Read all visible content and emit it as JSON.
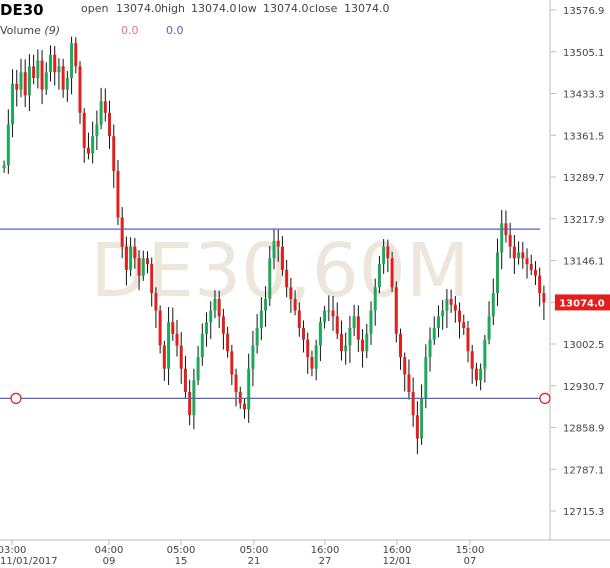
{
  "header": {
    "symbol": "DE30",
    "open_label": "open",
    "open_value": "13074.0",
    "high_label": "high",
    "high_value": "13074.0",
    "low_label": "low",
    "low_value": "13074.0",
    "close_label": "close",
    "close_value": "13074.0",
    "volume_label": "Volume",
    "volume_period": "(9)",
    "volume_value_1": "0.0",
    "volume_value_2": "0.0"
  },
  "colors": {
    "up": "#1ea85a",
    "down": "#e0201c",
    "wick": "#111111",
    "line": "#5566bb",
    "grid": "#bbbbbb",
    "price_label_bg": "#e0201c"
  },
  "chart_data": {
    "type": "line",
    "title": "",
    "watermark": "DE30,60M",
    "current_price": 13074.0,
    "ylim": [
      12680,
      13590
    ],
    "y_ticks": [
      "13576.9",
      "13505.1",
      "13433.3",
      "13361.5",
      "13289.7",
      "13217.9",
      "13146.1",
      "13074.0",
      "13002.5",
      "12930.7",
      "12858.9",
      "12787.1",
      "12715.3"
    ],
    "x_ticks": [
      {
        "time": "03:00",
        "date": "11/01/2017"
      },
      {
        "time": "04:00",
        "date": "09"
      },
      {
        "time": "05:00",
        "date": "15"
      },
      {
        "time": "05:00",
        "date": "21"
      },
      {
        "time": "16:00",
        "date": "27"
      },
      {
        "time": "16:00",
        "date": "12/01"
      },
      {
        "time": "15:00",
        "date": "07"
      }
    ],
    "horizontal_lines": [
      13200,
      12909
    ],
    "series": [
      {
        "values": [
          13310,
          13380,
          13450,
          13440,
          13470,
          13430,
          13480,
          13460,
          13490,
          13440,
          13470,
          13500,
          13470,
          13480,
          13440,
          13460,
          13520,
          13480,
          13400,
          13340,
          13330,
          13360,
          13380,
          13420,
          13400,
          13360,
          13300,
          13220,
          13170,
          13130,
          13170,
          13150,
          13120,
          13150,
          13140,
          13090,
          13060,
          13000,
          12960,
          13040,
          13020,
          13000,
          12960,
          12920,
          12880,
          12940,
          12980,
          13020,
          13040,
          13060,
          13080,
          13050,
          13020,
          12990,
          12950,
          12920,
          12900,
          12890,
          12960,
          13000,
          13030,
          13060,
          13080,
          13150,
          13180,
          13170,
          13130,
          13100,
          13080,
          13060,
          13030,
          13010,
          12980,
          12960,
          13000,
          13040,
          13060,
          13060,
          13050,
          13020,
          12990,
          13000,
          13030,
          13050,
          13010,
          12990,
          13020,
          13060,
          13100,
          13140,
          13170,
          13150,
          13100,
          13020,
          12980,
          12950,
          12920,
          12880,
          12840,
          12910,
          12980,
          13010,
          13030,
          13050,
          13060,
          13080,
          13070,
          13060,
          13040,
          13030,
          12990,
          12960,
          12940,
          12960,
          13010,
          13050,
          13090,
          13160,
          13210,
          13190,
          13170,
          13150,
          13160,
          13150,
          13140,
          13130,
          13120,
          13090,
          13074
        ]
      }
    ]
  }
}
